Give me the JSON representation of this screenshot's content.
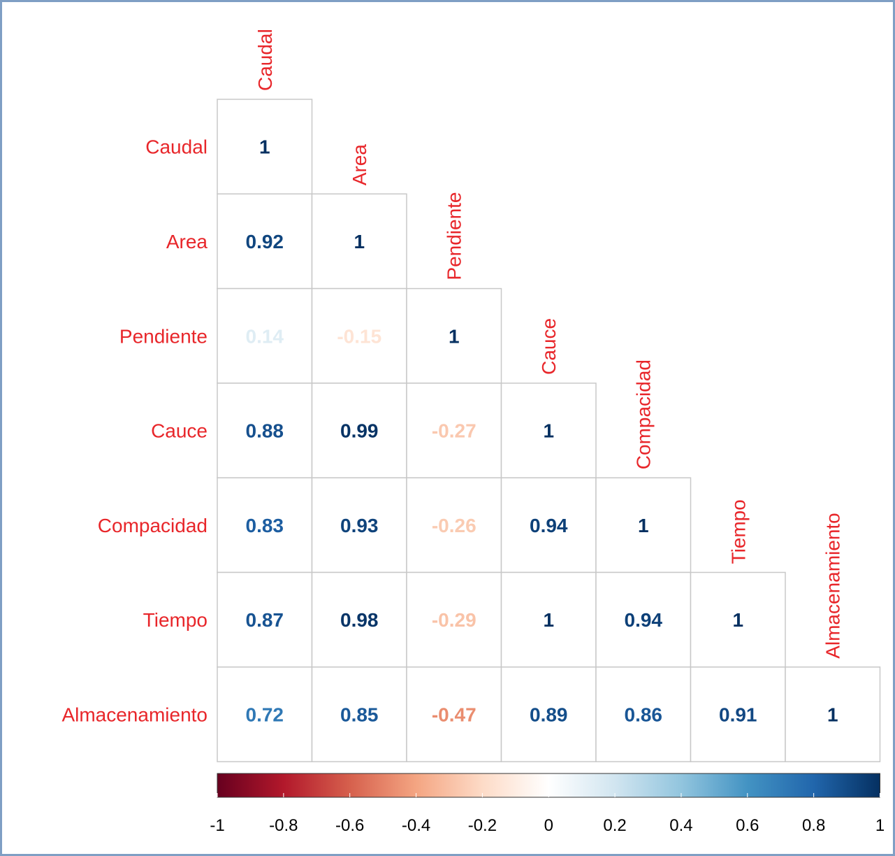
{
  "chart_data": {
    "type": "heatmap",
    "shape": "lower-triangle",
    "variables": [
      "Caudal",
      "Area",
      "Pendiente",
      "Cauce",
      "Compacidad",
      "Tiempo",
      "Almacenamiento"
    ],
    "matrix": [
      [
        1
      ],
      [
        0.92,
        1
      ],
      [
        0.14,
        -0.15,
        1
      ],
      [
        0.88,
        0.99,
        -0.27,
        1
      ],
      [
        0.83,
        0.93,
        -0.26,
        0.94,
        1
      ],
      [
        0.87,
        0.98,
        -0.29,
        1,
        0.94,
        1
      ],
      [
        0.72,
        0.85,
        -0.47,
        0.89,
        0.86,
        0.91,
        1
      ]
    ],
    "value_labels": [
      [
        "1"
      ],
      [
        "0.92",
        "1"
      ],
      [
        "0.14",
        "-0.15",
        "1"
      ],
      [
        "0.88",
        "0.99",
        "-0.27",
        "1"
      ],
      [
        "0.83",
        "0.93",
        "-0.26",
        "0.94",
        "1"
      ],
      [
        "0.87",
        "0.98",
        "-0.29",
        "1",
        "0.94",
        "1"
      ],
      [
        "0.72",
        "0.85",
        "-0.47",
        "0.89",
        "0.86",
        "0.91",
        "1"
      ]
    ],
    "colorbar": {
      "range": [
        -1,
        1
      ],
      "ticks": [
        "-1",
        "-0.8",
        "-0.6",
        "-0.4",
        "-0.2",
        "0",
        "0.2",
        "0.4",
        "0.6",
        "0.8",
        "1"
      ],
      "colors": [
        "#67001f",
        "#b2182b",
        "#d6604d",
        "#f4a582",
        "#fddbc7",
        "#ffffff",
        "#d1e5f0",
        "#92c5de",
        "#4393c3",
        "#2166ac",
        "#053061"
      ]
    },
    "label_color": "#e8262a",
    "grid": true
  }
}
